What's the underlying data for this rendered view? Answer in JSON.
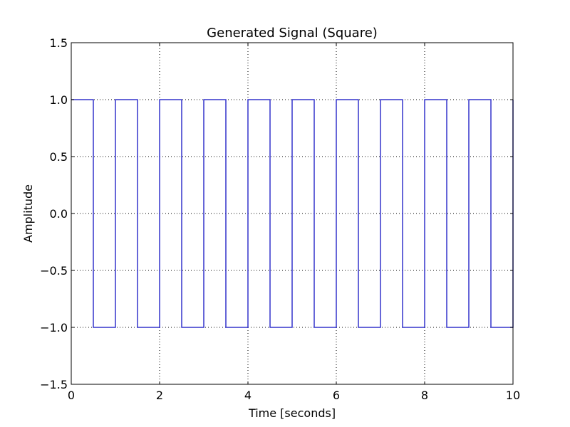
{
  "chart_data": {
    "type": "line",
    "title": "Generated Signal (Square)",
    "xlabel": "Time [seconds]",
    "ylabel": "Amplitude",
    "xlim": [
      0,
      10
    ],
    "ylim": [
      -1.5,
      1.5
    ],
    "grid": true,
    "xticks": [
      0,
      2,
      4,
      6,
      8,
      10
    ],
    "yticks": [
      1.5,
      1.0,
      0.5,
      0.0,
      -0.5,
      -1.0,
      -1.5
    ],
    "xtick_labels": [
      "0",
      "2",
      "4",
      "6",
      "8",
      "10"
    ],
    "ytick_labels": [
      "1.5",
      "1.0",
      "0.5",
      "0.0",
      "−0.5",
      "−1.0",
      "−1.5"
    ],
    "series": [
      {
        "color": "#3333cc",
        "x": [
          0,
          0.5,
          0.5,
          1.0,
          1.0,
          1.5,
          1.5,
          2.0,
          2.0,
          2.5,
          2.5,
          3.0,
          3.0,
          3.5,
          3.5,
          4.0,
          4.0,
          4.5,
          4.5,
          5.0,
          5.0,
          5.5,
          5.5,
          6.0,
          6.0,
          6.5,
          6.5,
          7.0,
          7.0,
          7.5,
          7.5,
          8.0,
          8.0,
          8.5,
          8.5,
          9.0,
          9.0,
          9.5,
          9.5,
          10.0,
          10.0
        ],
        "y": [
          1,
          1,
          -1,
          -1,
          1,
          1,
          -1,
          -1,
          1,
          1,
          -1,
          -1,
          1,
          1,
          -1,
          -1,
          1,
          1,
          -1,
          -1,
          1,
          1,
          -1,
          -1,
          1,
          1,
          -1,
          -1,
          1,
          1,
          -1,
          -1,
          1,
          1,
          -1,
          -1,
          1,
          1,
          -1,
          -1,
          1
        ]
      }
    ]
  }
}
